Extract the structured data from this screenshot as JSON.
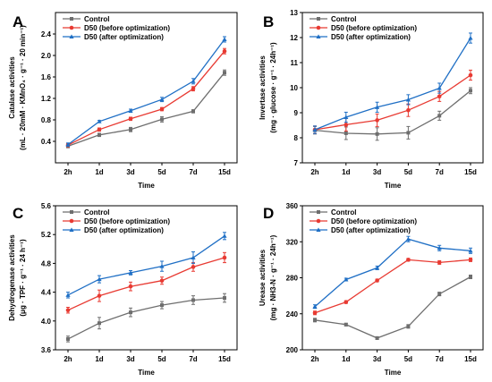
{
  "colors": {
    "Control": "#6e6e6e",
    "D50 (before optimization)": "#e83a32",
    "D50 (after optimization)": "#1f6fc5"
  },
  "chart_data": [
    {
      "panel": "A",
      "type": "line",
      "categories": [
        "2h",
        "1d",
        "3d",
        "5d",
        "7d",
        "15d"
      ],
      "xlabel": "Time",
      "ylabel_lines": [
        "Catalase activities",
        "(mL · 20mM · KMnO₄ · g⁻¹ · 20 min⁻¹)"
      ],
      "ylim": [
        0.0,
        2.8
      ],
      "yticks": [
        "0.4",
        "0.8",
        "1.2",
        "1.6",
        "2.0",
        "2.4"
      ],
      "ytick_values": [
        0.4,
        0.8,
        1.2,
        1.6,
        2.0,
        2.4
      ],
      "legend": "top-left",
      "grid": false,
      "series": [
        {
          "name": "Control",
          "values": [
            0.31,
            0.52,
            0.62,
            0.81,
            0.96,
            1.68
          ],
          "errors": [
            0.03,
            0.03,
            0.04,
            0.05,
            0.03,
            0.05
          ]
        },
        {
          "name": "D50 (before optimization)",
          "values": [
            0.33,
            0.62,
            0.82,
            1.0,
            1.38,
            2.08
          ],
          "errors": [
            0.03,
            0.03,
            0.03,
            0.03,
            0.04,
            0.05
          ]
        },
        {
          "name": "D50 (after optimization)",
          "values": [
            0.34,
            0.77,
            0.97,
            1.18,
            1.52,
            2.3
          ],
          "errors": [
            0.03,
            0.02,
            0.03,
            0.04,
            0.05,
            0.05
          ]
        }
      ]
    },
    {
      "panel": "B",
      "type": "line",
      "categories": [
        "2h",
        "1d",
        "3d",
        "5d",
        "7d",
        "15d"
      ],
      "xlabel": "Time",
      "ylabel_lines": [
        "Invertase activities",
        "(mg · glucose · g⁻¹ · 24h⁻¹)"
      ],
      "ylim": [
        7,
        13
      ],
      "yticks": [
        "7",
        "8",
        "9",
        "10",
        "11",
        "12",
        "13"
      ],
      "ytick_values": [
        7,
        8,
        9,
        10,
        11,
        12,
        13
      ],
      "legend": "top-left",
      "grid": false,
      "series": [
        {
          "name": "Control",
          "values": [
            8.3,
            8.18,
            8.15,
            8.2,
            8.88,
            9.88
          ],
          "errors": [
            0.15,
            0.25,
            0.25,
            0.25,
            0.18,
            0.12
          ]
        },
        {
          "name": "D50 (before optimization)",
          "values": [
            8.32,
            8.52,
            8.7,
            9.1,
            9.65,
            10.5
          ],
          "errors": [
            0.15,
            0.25,
            0.25,
            0.25,
            0.2,
            0.2
          ]
        },
        {
          "name": "D50 (after optimization)",
          "values": [
            8.32,
            8.82,
            9.22,
            9.52,
            9.98,
            11.98
          ],
          "errors": [
            0.15,
            0.2,
            0.2,
            0.2,
            0.2,
            0.2
          ]
        }
      ]
    },
    {
      "panel": "C",
      "type": "line",
      "categories": [
        "2h",
        "1d",
        "3d",
        "5d",
        "7d",
        "15d"
      ],
      "xlabel": "Time",
      "ylabel_lines": [
        "Dehydrogenase activities",
        "(μg · TPF · g⁻¹ · 24 h⁻¹)"
      ],
      "ylim": [
        3.6,
        5.6
      ],
      "yticks": [
        "3.6",
        "4.0",
        "4.4",
        "4.8",
        "5.2",
        "5.6"
      ],
      "ytick_values": [
        3.6,
        4.0,
        4.4,
        4.8,
        5.2,
        5.6
      ],
      "legend": "top-left",
      "grid": false,
      "series": [
        {
          "name": "Control",
          "values": [
            3.75,
            3.97,
            4.12,
            4.22,
            4.29,
            4.32
          ],
          "errors": [
            0.04,
            0.08,
            0.06,
            0.05,
            0.06,
            0.06
          ]
        },
        {
          "name": "D50 (before optimization)",
          "values": [
            4.15,
            4.35,
            4.48,
            4.56,
            4.75,
            4.88
          ],
          "errors": [
            0.04,
            0.08,
            0.06,
            0.05,
            0.06,
            0.07
          ]
        },
        {
          "name": "D50 (after optimization)",
          "values": [
            4.36,
            4.58,
            4.67,
            4.76,
            4.88,
            5.18
          ],
          "errors": [
            0.04,
            0.05,
            0.03,
            0.07,
            0.08,
            0.05
          ]
        }
      ]
    },
    {
      "panel": "D",
      "type": "line",
      "categories": [
        "2h",
        "1d",
        "3d",
        "5d",
        "7d",
        "15d"
      ],
      "xlabel": "Time",
      "ylabel_lines": [
        "Urease activities",
        "(mg · NH3-N · g⁻¹ · 24h⁻¹)"
      ],
      "ylim": [
        200,
        360
      ],
      "yticks": [
        "200",
        "240",
        "280",
        "320",
        "360"
      ],
      "ytick_values": [
        200,
        240,
        280,
        320,
        360
      ],
      "legend": "top-left",
      "grid": false,
      "series": [
        {
          "name": "Control",
          "values": [
            233,
            228,
            213,
            226,
            262,
            281
          ],
          "errors": [
            2,
            1.5,
            1.5,
            2,
            2,
            2
          ]
        },
        {
          "name": "D50 (before optimization)",
          "values": [
            241,
            253,
            277,
            300,
            297,
            300
          ],
          "errors": [
            2,
            1.5,
            1.5,
            1.5,
            2,
            2
          ]
        },
        {
          "name": "D50 (after optimization)",
          "values": [
            248,
            278,
            291,
            323,
            313,
            310
          ],
          "errors": [
            2,
            1.5,
            2,
            3,
            3,
            3
          ]
        }
      ]
    }
  ]
}
